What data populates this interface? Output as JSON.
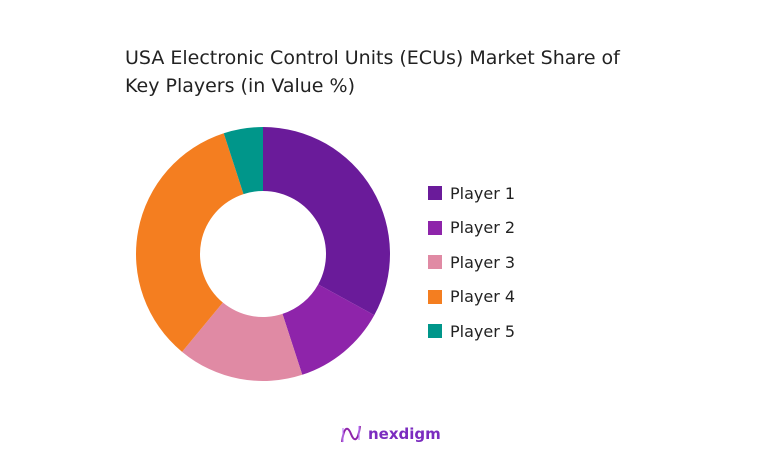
{
  "chart_data": {
    "type": "pie",
    "donut": true,
    "title": "USA Electronic Control Units (ECUs) Market Share of Key Players (in Value %)",
    "categories": [
      "Player 1",
      "Player 2",
      "Player 3",
      "Player 4",
      "Player 5"
    ],
    "values": [
      33,
      12,
      16,
      34,
      5
    ],
    "colors": [
      "#6a1b9a",
      "#8e24aa",
      "#e08aa4",
      "#f47e20",
      "#00968a"
    ],
    "legend_position": "right"
  },
  "brand": {
    "name": "nexdigm"
  }
}
